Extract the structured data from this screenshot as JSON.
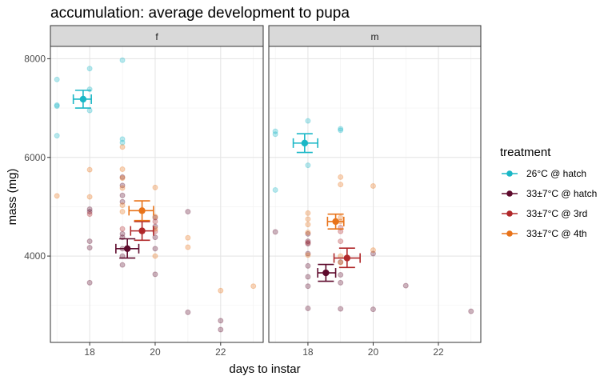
{
  "chart_data": {
    "type": "scatter",
    "title": "accumulation: average development to pupa",
    "xlabel": "days to instar",
    "ylabel": "mass (mg)",
    "xlim": [
      16.8,
      23.3
    ],
    "ylim": [
      2250,
      8250
    ],
    "x_ticks": [
      18,
      20,
      22
    ],
    "y_ticks": [
      4000,
      6000,
      8000
    ],
    "grid": true,
    "legend": {
      "title": "treatment",
      "position": "right"
    },
    "facets": [
      "f",
      "m"
    ],
    "series": [
      {
        "name": "26°C @ hatch",
        "color": "#1AB7C6",
        "points": {
          "f": [
            [
              17,
              7580
            ],
            [
              17,
              7060
            ],
            [
              17,
              7040
            ],
            [
              17,
              6440
            ],
            [
              18,
              7800
            ],
            [
              18,
              7380
            ],
            [
              18,
              6950
            ],
            [
              19,
              7970
            ],
            [
              19,
              6370
            ],
            [
              19,
              6300
            ]
          ],
          "m": [
            [
              17,
              6530
            ],
            [
              17,
              6470
            ],
            [
              17,
              5340
            ],
            [
              18,
              6740
            ],
            [
              18,
              5840
            ],
            [
              19,
              6580
            ],
            [
              19,
              6550
            ]
          ]
        },
        "means": {
          "f": {
            "x": 17.8,
            "y": 7180,
            "x_err": [
              17.5,
              18.05
            ],
            "y_err": [
              7000,
              7360
            ]
          },
          "m": {
            "x": 17.9,
            "y": 6290,
            "x_err": [
              17.55,
              18.3
            ],
            "y_err": [
              6100,
              6480
            ]
          }
        }
      },
      {
        "name": "33±7°C @ hatch",
        "color": "#5E0A2C",
        "points": {
          "f": [
            [
              18,
              4950
            ],
            [
              18,
              4900
            ],
            [
              18,
              4300
            ],
            [
              18,
              4170
            ],
            [
              18,
              3460
            ],
            [
              19,
              5600
            ],
            [
              19,
              5430
            ],
            [
              19,
              5230
            ],
            [
              19,
              5100
            ],
            [
              19,
              4450
            ],
            [
              19,
              4380
            ],
            [
              19,
              4150
            ],
            [
              19,
              4000
            ],
            [
              19,
              3820
            ],
            [
              20,
              4780
            ],
            [
              20,
              4600
            ],
            [
              20,
              4380
            ],
            [
              20,
              4150
            ],
            [
              20,
              3630
            ],
            [
              21,
              4900
            ],
            [
              21,
              2860
            ],
            [
              22,
              2690
            ],
            [
              22,
              2510
            ]
          ],
          "m": [
            [
              17,
              4490
            ],
            [
              18,
              4450
            ],
            [
              18,
              4300
            ],
            [
              18,
              4250
            ],
            [
              18,
              4050
            ],
            [
              18,
              3800
            ],
            [
              18,
              3580
            ],
            [
              18,
              3390
            ],
            [
              18,
              2940
            ],
            [
              19,
              3880
            ],
            [
              19,
              3620
            ],
            [
              19,
              3460
            ],
            [
              19,
              2930
            ],
            [
              20,
              4050
            ],
            [
              20,
              2920
            ],
            [
              21,
              3400
            ],
            [
              23,
              2880
            ]
          ]
        },
        "means": {
          "f": {
            "x": 19.15,
            "y": 4150,
            "x_err": [
              18.8,
              19.5
            ],
            "y_err": [
              3960,
              4350
            ]
          },
          "m": {
            "x": 18.55,
            "y": 3660,
            "x_err": [
              18.3,
              18.85
            ],
            "y_err": [
              3490,
              3830
            ]
          }
        }
      },
      {
        "name": "33±7°C @ 3rd",
        "color": "#B0282A",
        "points": {
          "f": [
            [
              18,
              4850
            ],
            [
              19,
              4550
            ],
            [
              20,
              4700
            ],
            [
              20,
              4500
            ]
          ],
          "m": [
            [
              18,
              4270
            ],
            [
              19,
              4580
            ],
            [
              19,
              4500
            ],
            [
              19,
              4300
            ]
          ]
        },
        "means": {
          "f": {
            "x": 19.6,
            "y": 4510,
            "x_err": [
              19.25,
              19.95
            ],
            "y_err": [
              4320,
              4700
            ]
          },
          "m": {
            "x": 19.2,
            "y": 3960,
            "x_err": [
              18.8,
              19.6
            ],
            "y_err": [
              3770,
              4160
            ]
          }
        }
      },
      {
        "name": "33±7°C @ 4th",
        "color": "#E8731A",
        "points": {
          "f": [
            [
              17,
              5220
            ],
            [
              18,
              5750
            ],
            [
              18,
              5200
            ],
            [
              19,
              6210
            ],
            [
              19,
              5760
            ],
            [
              19,
              5580
            ],
            [
              19,
              5380
            ],
            [
              19,
              5030
            ],
            [
              19,
              4900
            ],
            [
              20,
              5390
            ],
            [
              20,
              4800
            ],
            [
              20,
              4550
            ],
            [
              20,
              4000
            ],
            [
              21,
              4370
            ],
            [
              21,
              4180
            ],
            [
              22,
              3300
            ],
            [
              23,
              3390
            ]
          ],
          "m": [
            [
              18,
              4870
            ],
            [
              18,
              4750
            ],
            [
              18,
              4640
            ],
            [
              18,
              4480
            ],
            [
              18,
              4020
            ],
            [
              19,
              5600
            ],
            [
              19,
              5450
            ],
            [
              19,
              4780
            ],
            [
              19,
              4700
            ],
            [
              19,
              4000
            ],
            [
              19,
              3870
            ],
            [
              20,
              5420
            ],
            [
              20,
              4120
            ]
          ]
        },
        "means": {
          "f": {
            "x": 19.6,
            "y": 4920,
            "x_err": [
              19.2,
              19.95
            ],
            "y_err": [
              4720,
              5120
            ]
          },
          "m": {
            "x": 18.85,
            "y": 4700,
            "x_err": [
              18.6,
              19.1
            ],
            "y_err": [
              4550,
              4850
            ]
          }
        }
      }
    ]
  }
}
